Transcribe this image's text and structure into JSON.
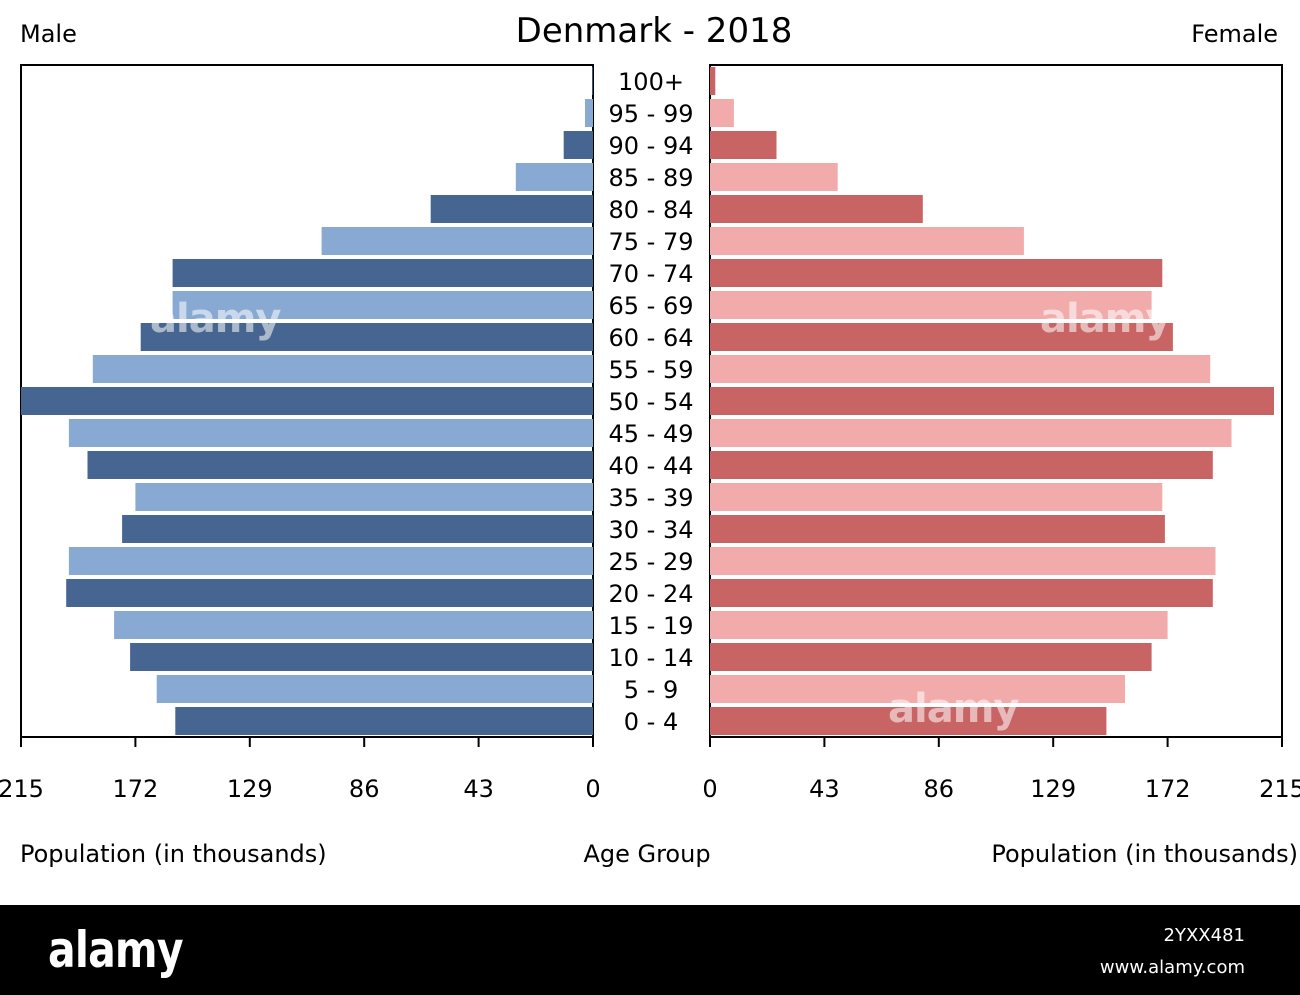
{
  "chart_data": {
    "type": "bar",
    "title": "Denmark - 2018",
    "left_label": "Male",
    "right_label": "Female",
    "xlabel_left": "Population (in thousands)",
    "xlabel_center": "Age Group",
    "xlabel_right": "Population (in thousands)",
    "xlim": [
      0,
      215
    ],
    "xticks": [
      0,
      43,
      86,
      129,
      172,
      215
    ],
    "tick_labels": [
      "0",
      "43",
      "86",
      "129",
      "172",
      "215"
    ],
    "categories": [
      "0 - 4",
      "5 - 9",
      "10 - 14",
      "15 - 19",
      "20 - 24",
      "25 - 29",
      "30 - 34",
      "35 - 39",
      "40 - 44",
      "45 - 49",
      "50 - 54",
      "55 - 59",
      "60 - 64",
      "65 - 69",
      "70 - 74",
      "75 - 79",
      "80 - 84",
      "85 - 89",
      "90 - 94",
      "95 - 99",
      "100+"
    ],
    "series": [
      {
        "name": "Male",
        "values": [
          157,
          164,
          174,
          180,
          198,
          197,
          177,
          172,
          190,
          197,
          215,
          188,
          170,
          158,
          158,
          102,
          61,
          29,
          11,
          3,
          0.3
        ]
      },
      {
        "name": "Female",
        "values": [
          149,
          156,
          166,
          172,
          189,
          190,
          171,
          170,
          189,
          196,
          212,
          188,
          174,
          166,
          170,
          118,
          80,
          48,
          25,
          9,
          2
        ]
      }
    ],
    "colors": {
      "male_dark": "#466591",
      "male_light": "#87a9d2",
      "female_dark": "#c96464",
      "female_light": "#f2abab"
    }
  },
  "watermark": {
    "brand": "alamy",
    "image_id": "2YXX481",
    "url": "www.alamy.com"
  }
}
